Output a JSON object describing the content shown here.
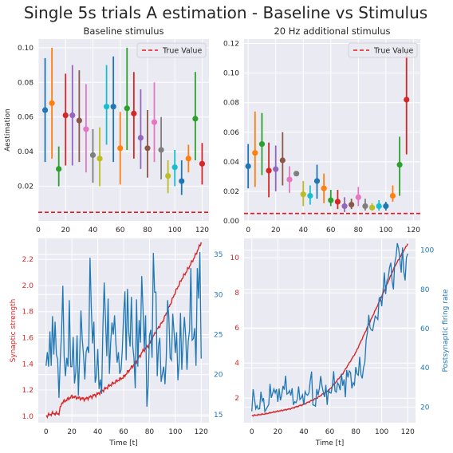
{
  "figure": {
    "suptitle": "Single 5s trials A estimation - Baseline vs Stimulus"
  },
  "colors": {
    "tab10": [
      "#1f77b4",
      "#ff7f0e",
      "#2ca02c",
      "#d62728",
      "#9467bd",
      "#8c564b",
      "#e377c2",
      "#7f7f7f",
      "#bcbd22",
      "#17becf"
    ],
    "true_value": "#e41a1c",
    "synaptic": "#d62728",
    "firing": "#1f77b4",
    "axes_bg": "#eaeaf2",
    "grid": "#ffffff"
  },
  "chart_data": [
    {
      "id": "baseline-estimation",
      "type": "scatter",
      "title": "Baseline stimulus",
      "xlabel": "",
      "ylabel": "Aestimation",
      "xlim": [
        0,
        125
      ],
      "ylim": [
        0.0,
        0.105
      ],
      "xticks": [
        0,
        20,
        40,
        60,
        80,
        100,
        120
      ],
      "yticks": [
        0.02,
        0.04,
        0.06,
        0.08,
        0.1
      ],
      "ytick_labels": [
        "0.02",
        "0.04",
        "0.06",
        "0.08",
        "0.10"
      ],
      "grid": true,
      "legend": {
        "label": "True Value",
        "placement": "top-right"
      },
      "true_value": 0.005,
      "x": [
        5,
        10,
        15,
        20,
        25,
        30,
        35,
        40,
        45,
        50,
        55,
        60,
        65,
        70,
        75,
        80,
        85,
        90,
        95,
        100,
        105,
        110,
        115,
        120
      ],
      "y": [
        0.064,
        0.068,
        0.03,
        0.061,
        0.061,
        0.058,
        0.053,
        0.038,
        0.036,
        0.066,
        0.066,
        0.042,
        0.065,
        0.062,
        0.048,
        0.042,
        0.057,
        0.041,
        0.026,
        0.031,
        0.023,
        0.036,
        0.059,
        0.033
      ],
      "low": [
        0.034,
        0.036,
        0.02,
        0.032,
        0.032,
        0.034,
        0.028,
        0.022,
        0.02,
        0.044,
        0.034,
        0.021,
        0.041,
        0.036,
        0.03,
        0.025,
        0.034,
        0.024,
        0.016,
        0.02,
        0.015,
        0.028,
        0.035,
        0.021
      ],
      "high": [
        0.094,
        0.1,
        0.043,
        0.085,
        0.09,
        0.087,
        0.079,
        0.053,
        0.054,
        0.09,
        0.095,
        0.063,
        0.1,
        0.086,
        0.076,
        0.064,
        0.08,
        0.06,
        0.035,
        0.041,
        0.035,
        0.044,
        0.086,
        0.045
      ]
    },
    {
      "id": "stimulus-estimation",
      "type": "scatter",
      "title": "20 Hz additional stimulus",
      "xlabel": "",
      "ylabel": "",
      "xlim": [
        -3,
        125
      ],
      "ylim": [
        0.0,
        0.123
      ],
      "xticks": [
        0,
        20,
        40,
        60,
        80,
        100,
        120
      ],
      "yticks": [
        0.0,
        0.02,
        0.04,
        0.06,
        0.08,
        0.1,
        0.12
      ],
      "ytick_labels": [
        "0.00",
        "0.02",
        "0.04",
        "0.06",
        "0.08",
        "0.10",
        "0.12"
      ],
      "grid": true,
      "legend": {
        "label": "True Value",
        "placement": "top-right"
      },
      "true_value": 0.005,
      "x": [
        0,
        5,
        10,
        15,
        20,
        25,
        30,
        35,
        40,
        45,
        50,
        55,
        60,
        65,
        70,
        75,
        80,
        85,
        90,
        95,
        100,
        105,
        110,
        115
      ],
      "y": [
        0.037,
        0.046,
        0.052,
        0.034,
        0.035,
        0.041,
        0.028,
        0.032,
        0.018,
        0.017,
        0.027,
        0.022,
        0.014,
        0.013,
        0.01,
        0.011,
        0.016,
        0.01,
        0.009,
        0.01,
        0.01,
        0.017,
        0.038,
        0.082
      ],
      "low": [
        0.022,
        0.023,
        0.031,
        0.016,
        0.02,
        0.024,
        0.019,
        0.032,
        0.01,
        0.011,
        0.015,
        0.012,
        0.01,
        0.008,
        0.006,
        0.008,
        0.01,
        0.007,
        0.007,
        0.007,
        0.007,
        0.013,
        0.017,
        0.045
      ],
      "high": [
        0.052,
        0.074,
        0.073,
        0.053,
        0.051,
        0.06,
        0.037,
        0.032,
        0.027,
        0.024,
        0.038,
        0.032,
        0.021,
        0.021,
        0.016,
        0.015,
        0.023,
        0.015,
        0.012,
        0.014,
        0.013,
        0.024,
        0.057,
        0.116
      ]
    },
    {
      "id": "baseline-timecourse",
      "type": "line",
      "title": "",
      "xlabel": "Time [t]",
      "ylabel": "Synaptic strength",
      "ylabel_right": "",
      "xlim": [
        -6,
        126
      ],
      "xticks": [
        0,
        20,
        40,
        60,
        80,
        100,
        120
      ],
      "grid": true,
      "left_axis": {
        "ylim": [
          0.95,
          2.36
        ],
        "ticks": [
          1.0,
          1.2,
          1.4,
          1.6,
          1.8,
          2.0,
          2.2
        ]
      },
      "right_axis": {
        "ylim": [
          14,
          37
        ],
        "ticks": [
          15,
          20,
          25,
          30,
          35
        ]
      },
      "synaptic_knots": [
        [
          0,
          1.0
        ],
        [
          5,
          1.02
        ],
        [
          10,
          1.02
        ],
        [
          12,
          1.1
        ],
        [
          20,
          1.15
        ],
        [
          30,
          1.13
        ],
        [
          40,
          1.17
        ],
        [
          50,
          1.24
        ],
        [
          60,
          1.3
        ],
        [
          65,
          1.36
        ],
        [
          70,
          1.42
        ],
        [
          75,
          1.5
        ],
        [
          80,
          1.55
        ],
        [
          85,
          1.65
        ],
        [
          90,
          1.72
        ],
        [
          95,
          1.83
        ],
        [
          100,
          1.95
        ],
        [
          105,
          2.05
        ],
        [
          110,
          2.13
        ],
        [
          115,
          2.22
        ],
        [
          120,
          2.33
        ]
      ],
      "firing_x_step": 1,
      "firing": [
        21.1,
        22.8,
        21.0,
        25.4,
        21.1,
        27.3,
        22.5,
        26.6,
        22.5,
        21.9,
        17.1,
        21.9,
        25.2,
        31.1,
        22.3,
        19.8,
        22.1,
        21.0,
        29.3,
        21.0,
        21.0,
        24.7,
        18.9,
        20.3,
        24.9,
        17.4,
        22.3,
        28.0,
        24.4,
        22.4,
        19.4,
        22.8,
        23.5,
        22.7,
        34.6,
        28.4,
        23.9,
        26.6,
        19.0,
        19.9,
        23.2,
        18.2,
        19.4,
        17.6,
        26.1,
        31.5,
        26.8,
        22.3,
        29.5,
        20.1,
        24.0,
        26.5,
        25.0,
        27.4,
        24.0,
        21.5,
        22.8,
        20.1,
        20.6,
        23.1,
        27.5,
        30.4,
        21.8,
        30.7,
        25.3,
        23.5,
        29.7,
        23.7,
        22.1,
        18.3,
        29.4,
        21.0,
        26.8,
        24.0,
        32.3,
        28.2,
        23.2,
        27.4,
        16.0,
        18.7,
        24.9,
        25.6,
        22.1,
        35.2,
        30.3,
        30.3,
        19.8,
        23.6,
        24.6,
        19.1,
        20.1,
        21.0,
        18.8,
        22.2,
        29.3,
        27.1,
        22.1,
        21.8,
        27.6,
        25.3,
        22.7,
        25.3,
        19.3,
        21.6,
        27.7,
        20.6,
        24.3,
        27.2,
        24.8,
        20.6,
        24.2,
        25.5,
        33.3,
        24.3,
        24.5,
        25.8,
        21.1,
        33.3,
        29.5,
        35.3,
        22.0
      ]
    },
    {
      "id": "stimulus-timecourse",
      "type": "line",
      "title": "",
      "xlabel": "Time [t]",
      "ylabel": "",
      "ylabel_right": "Postsynaptic firing rate",
      "xlim": [
        -6,
        126
      ],
      "xticks": [
        0,
        20,
        40,
        60,
        80,
        100,
        120
      ],
      "grid": true,
      "left_axis": {
        "ylim": [
          0.6,
          11.1
        ],
        "ticks": [
          2,
          4,
          6,
          8,
          10
        ]
      },
      "right_axis": {
        "ylim": [
          12,
          106
        ],
        "ticks": [
          20,
          40,
          60,
          80,
          100
        ]
      },
      "synaptic_knots": [
        [
          0,
          1.0
        ],
        [
          10,
          1.1
        ],
        [
          20,
          1.25
        ],
        [
          30,
          1.4
        ],
        [
          40,
          1.65
        ],
        [
          50,
          2.0
        ],
        [
          60,
          2.5
        ],
        [
          70,
          3.4
        ],
        [
          80,
          4.6
        ],
        [
          90,
          6.2
        ],
        [
          100,
          7.8
        ],
        [
          110,
          9.5
        ],
        [
          120,
          10.8
        ]
      ],
      "firing_x_step": 1,
      "firing": [
        17.8,
        29.1,
        24.4,
        19.1,
        20.7,
        18.9,
        19.1,
        27.8,
        23.0,
        24.6,
        17.7,
        18.8,
        20.1,
        21.2,
        31.8,
        24.7,
        27.0,
        29.2,
        27.1,
        29.1,
        22.6,
        29.4,
        23.4,
        26.1,
        30.8,
        28.8,
        36.0,
        26.6,
        27.1,
        28.4,
        25.9,
        29.6,
        21.1,
        22.7,
        22.2,
        24.0,
        30.5,
        23.8,
        24.6,
        26.2,
        21.0,
        27.9,
        26.4,
        26.0,
        27.3,
        33.6,
        38.1,
        21.1,
        20.9,
        20.4,
        29.2,
        26.1,
        29.5,
        35.8,
        30.8,
        27.6,
        25.1,
        31.3,
        21.1,
        29.0,
        27.3,
        27.1,
        30.7,
        38.3,
        28.2,
        27.6,
        32.4,
        31.2,
        28.6,
        37.0,
        30.8,
        34.1,
        25.0,
        38.9,
        35.1,
        38.4,
        37.6,
        29.5,
        32.4,
        31.3,
        40.4,
        36.9,
        36.2,
        45.6,
        36.5,
        34.6,
        40.1,
        42.9,
        54.2,
        58.1,
        67.0,
        60.5,
        59.3,
        59.0,
        62.8,
        66.4,
        65.6,
        64.7,
        75.5,
        76.1,
        71.4,
        79.3,
        88.7,
        77.6,
        84.4,
        85.8,
        91.2,
        93.6,
        84.3,
        80.0,
        93.4,
        96.8,
        103.6,
        100.8,
        95.2,
        88.6,
        101.4,
        88.9,
        84.6,
        96.2,
        98.3
      ]
    }
  ]
}
